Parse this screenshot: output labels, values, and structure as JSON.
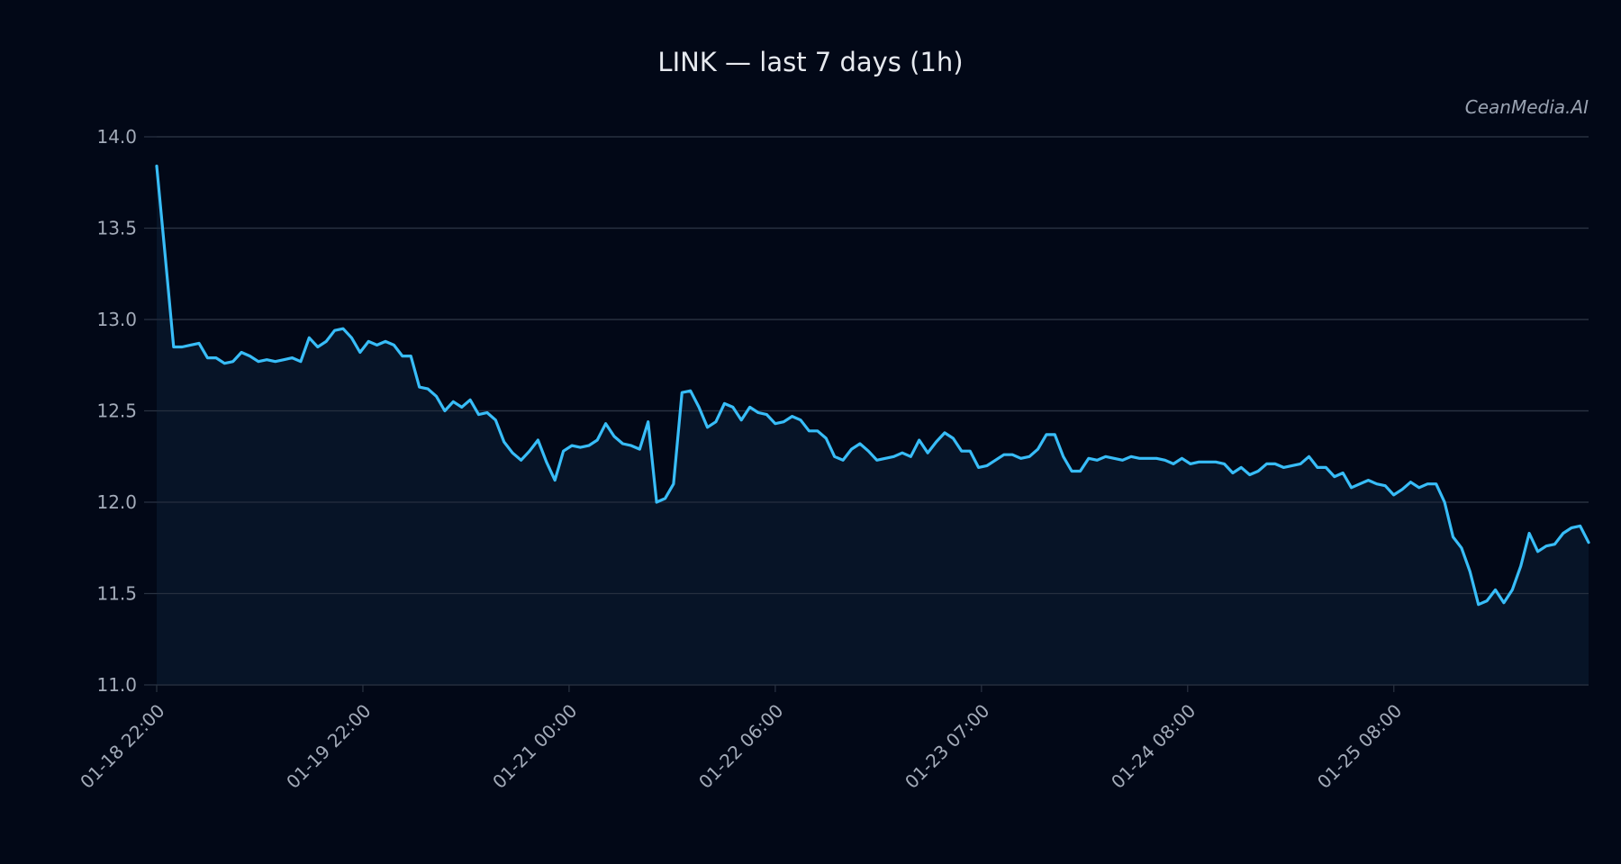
{
  "title": "LINK — last 7 days (1h)",
  "watermark": "CeanMedia.AI",
  "colors": {
    "background": "#020817",
    "plot_fill": "#071427",
    "line": "#38bdf8",
    "grid": "#2a3342",
    "tick_text": "#a3abb9",
    "title_text": "#e6e9ef"
  },
  "chart_data": {
    "type": "area",
    "title": "LINK — last 7 days (1h)",
    "xlabel": "",
    "ylabel": "",
    "ylim": [
      11.0,
      14.0
    ],
    "yticks": [
      11.0,
      11.5,
      12.0,
      12.5,
      13.0,
      13.5,
      14.0
    ],
    "ytick_labels": [
      "11.0",
      "11.5",
      "12.0",
      "12.5",
      "13.0",
      "13.5",
      "14.0"
    ],
    "xtick_labels": [
      "01-18 22:00",
      "01-19 22:00",
      "01-21 00:00",
      "01-22 06:00",
      "01-23 07:00",
      "01-24 08:00",
      "01-25 08:00"
    ],
    "xtick_indices": [
      0,
      24,
      48,
      72,
      96,
      120,
      144
    ],
    "grid": true,
    "legend": false,
    "series": [
      {
        "name": "LINK",
        "values": [
          13.84,
          13.35,
          12.85,
          12.85,
          12.86,
          12.87,
          12.79,
          12.79,
          12.76,
          12.77,
          12.82,
          12.8,
          12.77,
          12.78,
          12.77,
          12.78,
          12.79,
          12.77,
          12.9,
          12.85,
          12.88,
          12.94,
          12.95,
          12.9,
          12.82,
          12.88,
          12.86,
          12.88,
          12.86,
          12.8,
          12.8,
          12.63,
          12.62,
          12.58,
          12.5,
          12.55,
          12.52,
          12.56,
          12.48,
          12.49,
          12.45,
          12.33,
          12.27,
          12.23,
          12.28,
          12.34,
          12.22,
          12.12,
          12.28,
          12.31,
          12.3,
          12.31,
          12.34,
          12.43,
          12.36,
          12.32,
          12.31,
          12.29,
          12.44,
          12.0,
          12.02,
          12.1,
          12.6,
          12.61,
          12.52,
          12.41,
          12.44,
          12.54,
          12.52,
          12.45,
          12.52,
          12.49,
          12.48,
          12.43,
          12.44,
          12.47,
          12.45,
          12.39,
          12.39,
          12.35,
          12.25,
          12.23,
          12.29,
          12.32,
          12.28,
          12.23,
          12.24,
          12.25,
          12.27,
          12.25,
          12.34,
          12.27,
          12.33,
          12.38,
          12.35,
          12.28,
          12.28,
          12.19,
          12.2,
          12.23,
          12.26,
          12.26,
          12.24,
          12.25,
          12.29,
          12.37,
          12.37,
          12.25,
          12.17,
          12.17,
          12.24,
          12.23,
          12.25,
          12.24,
          12.23,
          12.25,
          12.24,
          12.24,
          12.24,
          12.23,
          12.21,
          12.24,
          12.21,
          12.22,
          12.22,
          12.22,
          12.21,
          12.16,
          12.19,
          12.15,
          12.17,
          12.21,
          12.21,
          12.19,
          12.2,
          12.21,
          12.25,
          12.19,
          12.19,
          12.14,
          12.16,
          12.08,
          12.1,
          12.12,
          12.1,
          12.09,
          12.04,
          12.07,
          12.11,
          12.08,
          12.1,
          12.1,
          12.0,
          11.81,
          11.75,
          11.62,
          11.44,
          11.46,
          11.52,
          11.45,
          11.52,
          11.65,
          11.83,
          11.73,
          11.76,
          11.77,
          11.83,
          11.86,
          11.87,
          11.78
        ]
      }
    ]
  }
}
